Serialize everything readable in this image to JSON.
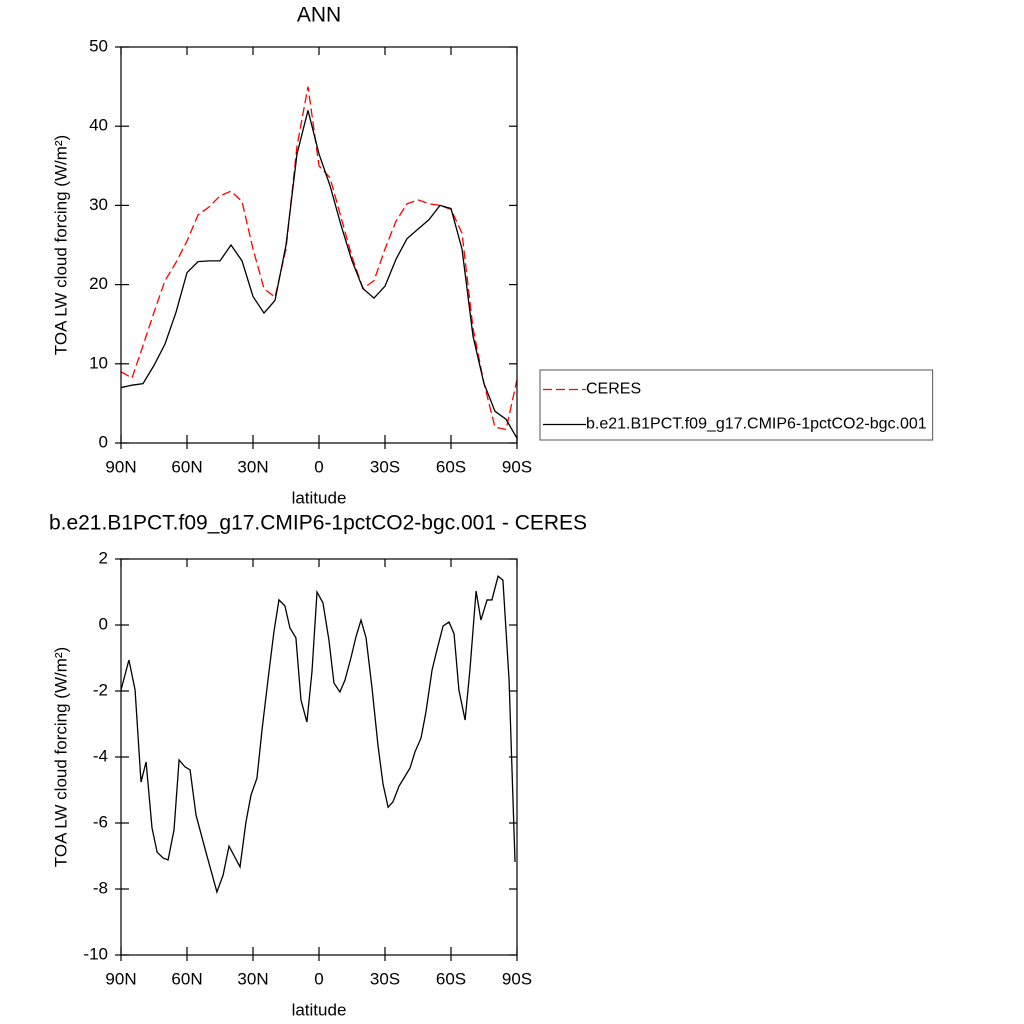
{
  "chart_data": [
    {
      "type": "line",
      "title": "ANN",
      "x_label": "latitude",
      "y_label": "TOA LW cloud forcing (W/m²)",
      "x": [
        90,
        85,
        80,
        75,
        70,
        65,
        60,
        55,
        50,
        45,
        40,
        35,
        30,
        25,
        20,
        15,
        10,
        5,
        0,
        -5,
        -10,
        -15,
        -20,
        -25,
        -30,
        -35,
        -40,
        -45,
        -50,
        -55,
        -60,
        -65,
        -70,
        -75,
        -80,
        -85,
        -90
      ],
      "series": [
        {
          "name": "CERES",
          "color": "#ff0000",
          "dashed": true,
          "values": [
            9.0,
            8.2,
            12.3,
            16.5,
            20.5,
            22.8,
            25.5,
            28.8,
            29.8,
            31.2,
            31.8,
            30.5,
            24.5,
            19.5,
            18.4,
            24.5,
            37.5,
            45.0,
            35.0,
            33.5,
            28.5,
            23.5,
            19.5,
            20.5,
            24.5,
            28.0,
            30.2,
            30.7,
            30.2,
            30.0,
            29.5,
            26.5,
            14.5,
            7.5,
            2.0,
            1.7,
            8.0
          ]
        },
        {
          "name": "b.e21.B1PCT.f09_g17.CMIP6-1pctCO2-bgc.001",
          "color": "#000000",
          "dashed": false,
          "values": [
            7.0,
            7.3,
            7.5,
            9.8,
            12.5,
            16.5,
            21.5,
            22.9,
            23.0,
            23.0,
            25.0,
            23.0,
            18.5,
            16.4,
            18.0,
            25.0,
            36.5,
            42.0,
            36.5,
            32.5,
            27.5,
            23.0,
            19.5,
            18.3,
            19.8,
            23.2,
            25.8,
            27.0,
            28.2,
            30.0,
            29.6,
            24.5,
            13.5,
            7.5,
            4.0,
            3.0,
            0.6
          ]
        }
      ],
      "xlim": [
        90,
        -90
      ],
      "xticks": [
        {
          "value": 90,
          "label": "90N"
        },
        {
          "value": 60,
          "label": "60N"
        },
        {
          "value": 30,
          "label": "30N"
        },
        0,
        {
          "value": -30,
          "label": "30S"
        },
        {
          "value": -60,
          "label": "60S"
        },
        {
          "value": -90,
          "label": "90S"
        }
      ],
      "ylim": [
        0,
        50
      ],
      "yticks": [
        0,
        10,
        20,
        30,
        40,
        50
      ],
      "legend": "outside-right"
    },
    {
      "type": "line",
      "title": "b.e21.B1PCT.f09_g17.CMIP6-1pctCO2-bgc.001 - CERES",
      "x_label": "latitude",
      "y_label": "TOA LW cloud forcing (W/m²)",
      "color": "#000000",
      "x": [
        90,
        86.4,
        83.6,
        80.9,
        78.6,
        75.9,
        73.6,
        70.9,
        68.6,
        65.9,
        63.6,
        60.9,
        58.6,
        55.9,
        51.4,
        46.4,
        43.6,
        40.9,
        35.9,
        33.2,
        30.9,
        28.2,
        25.9,
        23.2,
        20.5,
        18.2,
        15.5,
        13.2,
        10.5,
        8.2,
        5.5,
        3.2,
        0.9,
        -1.8,
        -4.5,
        -6.8,
        -9.5,
        -11.8,
        -14.5,
        -16.8,
        -19.1,
        -21.4,
        -24.1,
        -26.8,
        -29.1,
        -31.4,
        -33.6,
        -36.4,
        -38.6,
        -41.4,
        -43.6,
        -46.4,
        -48.6,
        -51.4,
        -53.6,
        -56.4,
        -59.1,
        -61.4,
        -63.6,
        -66.4,
        -68.6,
        -71.4,
        -73.6,
        -76.4,
        -78.6,
        -81.4,
        -83.6,
        -86.4,
        -89.1
      ],
      "values": [
        -1.97,
        -1.06,
        -1.97,
        -4.76,
        -4.15,
        -6.15,
        -6.88,
        -7.06,
        -7.12,
        -6.21,
        -4.09,
        -4.3,
        -4.39,
        -5.76,
        -6.88,
        -8.09,
        -7.58,
        -6.7,
        -7.33,
        -5.97,
        -5.15,
        -4.64,
        -3.18,
        -1.67,
        -0.21,
        0.76,
        0.58,
        -0.09,
        -0.39,
        -2.27,
        -2.94,
        -1.42,
        1.0,
        0.67,
        -0.45,
        -1.76,
        -2.03,
        -1.67,
        -1.0,
        -0.36,
        0.15,
        -0.39,
        -1.91,
        -3.64,
        -4.82,
        -5.52,
        -5.36,
        -4.88,
        -4.64,
        -4.33,
        -3.85,
        -3.42,
        -2.64,
        -1.36,
        -0.76,
        -0.03,
        0.09,
        -0.27,
        -1.97,
        -2.88,
        -1.36,
        1.03,
        0.15,
        0.76,
        0.76,
        1.48,
        1.36,
        -1.67,
        -7.18
      ],
      "xlim": [
        90,
        -90
      ],
      "xticks": [
        {
          "value": 90,
          "label": "90N"
        },
        {
          "value": 60,
          "label": "60N"
        },
        {
          "value": 30,
          "label": "30N"
        },
        0,
        {
          "value": -30,
          "label": "30S"
        },
        {
          "value": -60,
          "label": "60S"
        },
        {
          "value": -90,
          "label": "90S"
        }
      ],
      "ylim": [
        -10,
        2
      ],
      "yticks": [
        -10,
        -8,
        -6,
        -4,
        -2,
        0,
        2
      ]
    }
  ]
}
